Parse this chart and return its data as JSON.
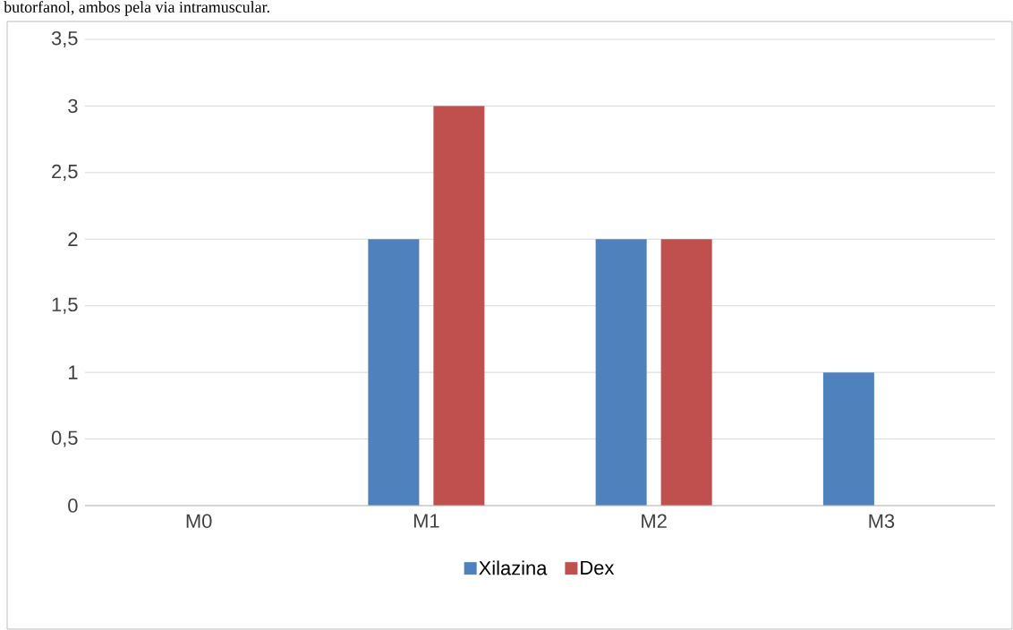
{
  "chart_data": {
    "type": "bar",
    "annotations": [
      "butorfanol, ambos pela via intramuscular."
    ],
    "categories": [
      "M0",
      "M1",
      "M2",
      "M3"
    ],
    "series": [
      {
        "name": "Xilazina",
        "color": "#4f81bd",
        "values": [
          0,
          2,
          2,
          1
        ]
      },
      {
        "name": "Dex",
        "color": "#c0504d",
        "values": [
          0,
          3,
          2,
          0
        ]
      }
    ],
    "ylim": [
      0,
      3.5
    ],
    "yticks": [
      0,
      {
        "value": 0.5,
        "label": "0,5"
      },
      1,
      {
        "value": 1.5,
        "label": "1,5"
      },
      2,
      {
        "value": 2.5,
        "label": "2,5"
      },
      3,
      {
        "value": 3.5,
        "label": "3,5"
      }
    ],
    "grid": "y",
    "legend": "bottom"
  }
}
